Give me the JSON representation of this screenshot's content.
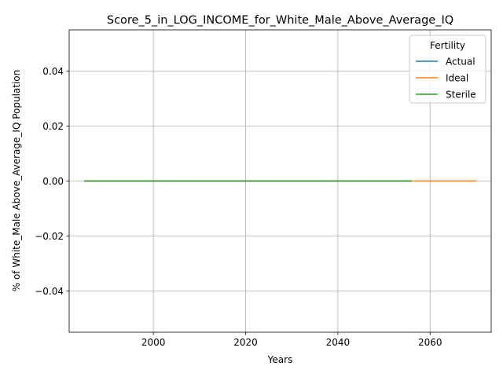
{
  "chart_data": {
    "type": "line",
    "title": "Score_5_in_LOG_INCOME_for_White_Male_Above_Average_IQ",
    "xlabel": "Years",
    "ylabel": "% of White_Male Above_Average_IQ Population",
    "xlim": [
      1981.75,
      2073.25
    ],
    "ylim": [
      -0.055,
      0.055
    ],
    "xticks": [
      2000,
      2020,
      2040,
      2060
    ],
    "yticks": [
      -0.04,
      -0.02,
      0.0,
      0.02,
      0.04
    ],
    "xtick_labels": [
      "2000",
      "2020",
      "2040",
      "2060"
    ],
    "ytick_labels": [
      "−0.04",
      "−0.02",
      "0.00",
      "0.02",
      "0.04"
    ],
    "grid": true,
    "legend": {
      "title": "Fertility",
      "position": "top-right"
    },
    "series": [
      {
        "name": "Actual",
        "color": "#1f77b4",
        "x": [
          1985,
          2056
        ],
        "y": [
          0,
          0
        ]
      },
      {
        "name": "Ideal",
        "color": "#ff7f0e",
        "x": [
          1985,
          2070
        ],
        "y": [
          0,
          0
        ]
      },
      {
        "name": "Sterile",
        "color": "#2ca02c",
        "x": [
          1985,
          2056
        ],
        "y": [
          0,
          0
        ]
      }
    ]
  }
}
